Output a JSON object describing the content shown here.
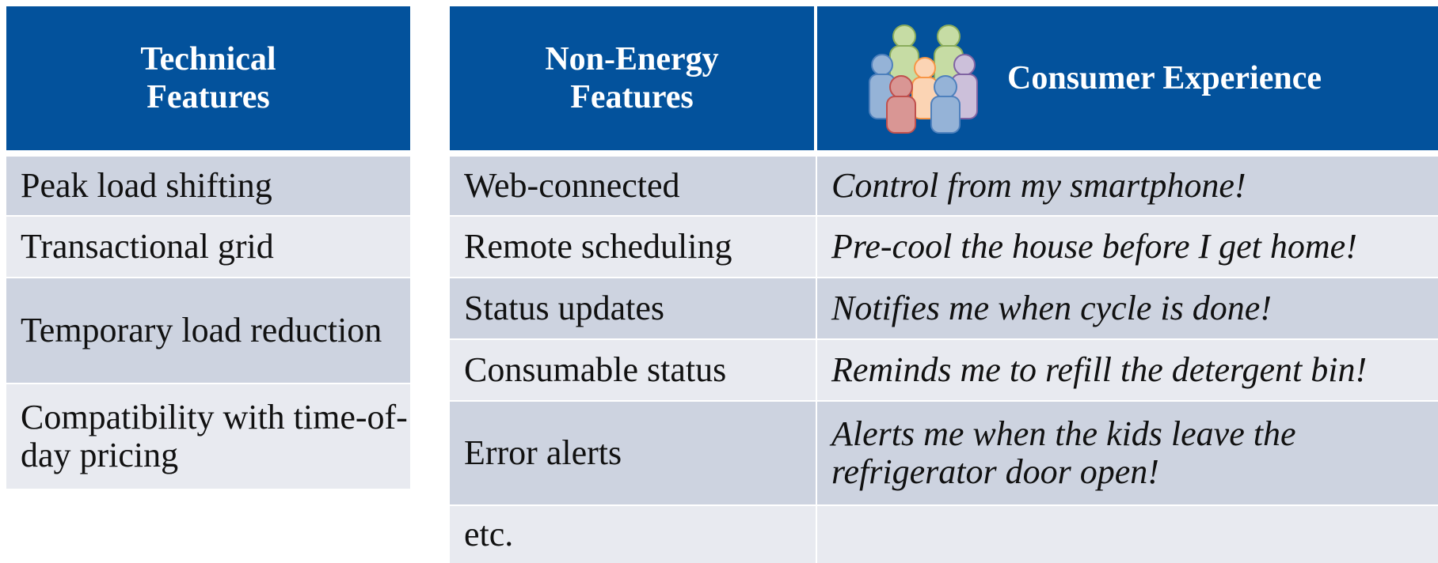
{
  "left_table": {
    "header": "Technical Features",
    "rows": [
      "Peak load shifting",
      "Transactional grid",
      "Temporary load reduction",
      "Compatibility with time-of-day pricing"
    ]
  },
  "right_table": {
    "headers": [
      "Non-Energy Features",
      "Consumer Experience"
    ],
    "rows": [
      [
        "Web-connected",
        "Control from my smartphone!"
      ],
      [
        "Remote scheduling",
        "Pre-cool the house before I get home!"
      ],
      [
        "Status updates",
        "Notifies me when cycle is done!"
      ],
      [
        "Consumable status",
        "Reminds me to refill the detergent bin!"
      ],
      [
        "Error alerts",
        "Alerts me when the kids leave the refrigerator door open!"
      ],
      [
        "etc."
      ]
    ]
  }
}
